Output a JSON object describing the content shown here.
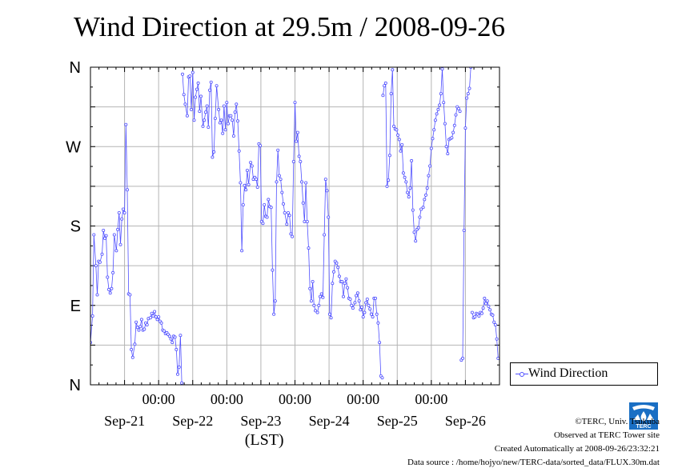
{
  "title": "Wind Direction at 29.5m / 2008-09-26",
  "legend": {
    "label": "Wind Direction"
  },
  "footer": {
    "copyright": "©TERC, Univ. Tsukuba",
    "observed": "Observed at TERC Tower site",
    "created": "Created Automatically at 2008-09-26/23:32:21",
    "source": "Data source : /home/hojyo/new/TERC-data/sorted_data/FLUX.30m.dat"
  },
  "logo": {
    "text": "TERC",
    "icon": "terc-logo-icon"
  },
  "colors": {
    "series": "#5050ff",
    "grid": "#b4b4b4",
    "axis": "#000000",
    "logo": "#1a6fc4"
  },
  "chart_data": {
    "type": "scatter",
    "title": "Wind Direction at 29.5m / 2008-09-26",
    "xlabel": "(LST)",
    "ylabel": "",
    "y_axis": {
      "ticks": [
        "N",
        "E",
        "S",
        "W",
        "N"
      ],
      "values": [
        0,
        90,
        180,
        270,
        360
      ],
      "range": [
        0,
        360
      ]
    },
    "x_axis": {
      "range_days": [
        20.0,
        26.0
      ],
      "time_ticks": [
        {
          "day": 21,
          "label": "00:00"
        },
        {
          "day": 22,
          "label": "00:00"
        },
        {
          "day": 23,
          "label": "00:00"
        },
        {
          "day": 24,
          "label": "00:00"
        },
        {
          "day": 25,
          "label": "00:00"
        }
      ],
      "date_labels": [
        {
          "day": 20.5,
          "label": "Sep-21"
        },
        {
          "day": 21.5,
          "label": "Sep-22"
        },
        {
          "day": 22.5,
          "label": "Sep-23"
        },
        {
          "day": 23.5,
          "label": "Sep-24"
        },
        {
          "day": 24.5,
          "label": "Sep-25"
        },
        {
          "day": 25.5,
          "label": "Sep-26"
        }
      ]
    },
    "grid": true,
    "legend_position": "right",
    "series": [
      {
        "name": "Wind Direction",
        "x_unit": "days since Sep-20 00:00",
        "points": [
          [
            20.0,
            48
          ],
          [
            20.03,
            78
          ],
          [
            20.05,
            170
          ],
          [
            20.08,
            135
          ],
          [
            20.1,
            102
          ],
          [
            20.12,
            140
          ],
          [
            20.14,
            139
          ],
          [
            20.17,
            148
          ],
          [
            20.19,
            175
          ],
          [
            20.21,
            166
          ],
          [
            20.23,
            169
          ],
          [
            20.25,
            122
          ],
          [
            20.27,
            108
          ],
          [
            20.29,
            104
          ],
          [
            20.31,
            109
          ],
          [
            20.33,
            127
          ],
          [
            20.35,
            170
          ],
          [
            20.38,
            152
          ],
          [
            20.4,
            176
          ],
          [
            20.42,
            195
          ],
          [
            20.44,
            159
          ],
          [
            20.46,
            188
          ],
          [
            20.48,
            199
          ],
          [
            20.5,
            195
          ],
          [
            20.52,
            295
          ],
          [
            20.54,
            221
          ],
          [
            20.56,
            103
          ],
          [
            20.58,
            102
          ],
          [
            20.6,
            40
          ],
          [
            20.62,
            31
          ],
          [
            20.65,
            46
          ],
          [
            20.67,
            71
          ],
          [
            20.69,
            65
          ],
          [
            20.71,
            62
          ],
          [
            20.73,
            66
          ],
          [
            20.75,
            74
          ],
          [
            20.77,
            62
          ],
          [
            20.79,
            63
          ],
          [
            20.81,
            70
          ],
          [
            20.83,
            68
          ],
          [
            20.85,
            75
          ],
          [
            20.88,
            76
          ],
          [
            20.9,
            81
          ],
          [
            20.92,
            78
          ],
          [
            20.94,
            83
          ],
          [
            20.96,
            77
          ],
          [
            20.98,
            74
          ],
          [
            21.0,
            77
          ],
          [
            21.02,
            72
          ],
          [
            21.04,
            70
          ],
          [
            21.06,
            62
          ],
          [
            21.08,
            61
          ],
          [
            21.1,
            58
          ],
          [
            21.12,
            59
          ],
          [
            21.14,
            57
          ],
          [
            21.16,
            55
          ],
          [
            21.18,
            52
          ],
          [
            21.2,
            48
          ],
          [
            21.22,
            55
          ],
          [
            21.24,
            54
          ],
          [
            21.26,
            40
          ],
          [
            21.28,
            12
          ],
          [
            21.3,
            20
          ],
          [
            21.32,
            56
          ],
          [
            21.34,
            2
          ],
          [
            21.35,
            352
          ],
          [
            21.37,
            329
          ],
          [
            21.39,
            318
          ],
          [
            21.42,
            305
          ],
          [
            21.44,
            349
          ],
          [
            21.46,
            350
          ],
          [
            21.48,
            312
          ],
          [
            21.5,
            354
          ],
          [
            21.52,
            300
          ],
          [
            21.54,
            326
          ],
          [
            21.56,
            335
          ],
          [
            21.58,
            342
          ],
          [
            21.6,
            310
          ],
          [
            21.62,
            327
          ],
          [
            21.65,
            293
          ],
          [
            21.67,
            300
          ],
          [
            21.69,
            309
          ],
          [
            21.71,
            316
          ],
          [
            21.73,
            292
          ],
          [
            21.75,
            334
          ],
          [
            21.77,
            343
          ],
          [
            21.79,
            258
          ],
          [
            21.81,
            264
          ],
          [
            21.83,
            302
          ],
          [
            21.85,
            339
          ],
          [
            21.88,
            312
          ],
          [
            21.9,
            297
          ],
          [
            21.92,
            300
          ],
          [
            21.94,
            285
          ],
          [
            21.96,
            316
          ],
          [
            21.98,
            289
          ],
          [
            22.0,
            320
          ],
          [
            22.02,
            296
          ],
          [
            22.04,
            305
          ],
          [
            22.06,
            305
          ],
          [
            22.08,
            300
          ],
          [
            22.1,
            282
          ],
          [
            22.12,
            309
          ],
          [
            22.14,
            318
          ],
          [
            22.16,
            299
          ],
          [
            22.18,
            265
          ],
          [
            22.2,
            229
          ],
          [
            22.22,
            152
          ],
          [
            22.24,
            204
          ],
          [
            22.26,
            226
          ],
          [
            22.28,
            221
          ],
          [
            22.3,
            243
          ],
          [
            22.32,
            227
          ],
          [
            22.35,
            252
          ],
          [
            22.37,
            248
          ],
          [
            22.39,
            233
          ],
          [
            22.41,
            235
          ],
          [
            22.43,
            233
          ],
          [
            22.45,
            224
          ],
          [
            22.47,
            273
          ],
          [
            22.49,
            271
          ],
          [
            22.51,
            185
          ],
          [
            22.53,
            183
          ],
          [
            22.55,
            204
          ],
          [
            22.57,
            191
          ],
          [
            22.59,
            190
          ],
          [
            22.61,
            210
          ],
          [
            22.63,
            202
          ],
          [
            22.65,
            201
          ],
          [
            22.67,
            130
          ],
          [
            22.69,
            80
          ],
          [
            22.71,
            95
          ],
          [
            22.73,
            230
          ],
          [
            22.75,
            266
          ],
          [
            22.77,
            237
          ],
          [
            22.79,
            233
          ],
          [
            22.81,
            218
          ],
          [
            22.83,
            205
          ],
          [
            22.85,
            195
          ],
          [
            22.88,
            182
          ],
          [
            22.9,
            195
          ],
          [
            22.92,
            192
          ],
          [
            22.94,
            171
          ],
          [
            22.96,
            168
          ],
          [
            22.98,
            253
          ],
          [
            23.0,
            320
          ],
          [
            23.02,
            276
          ],
          [
            23.04,
            286
          ],
          [
            23.06,
            259
          ],
          [
            23.08,
            253
          ],
          [
            23.1,
            230
          ],
          [
            23.12,
            206
          ],
          [
            23.14,
            185
          ],
          [
            23.16,
            229
          ],
          [
            23.18,
            185
          ],
          [
            23.2,
            155
          ],
          [
            23.22,
            109
          ],
          [
            23.24,
            95
          ],
          [
            23.26,
            117
          ],
          [
            23.28,
            90
          ],
          [
            23.3,
            84
          ],
          [
            23.33,
            82
          ],
          [
            23.35,
            90
          ],
          [
            23.37,
            100
          ],
          [
            23.39,
            103
          ],
          [
            23.41,
            99
          ],
          [
            23.43,
            170
          ],
          [
            23.45,
            233
          ],
          [
            23.47,
            220
          ],
          [
            23.49,
            190
          ],
          [
            23.51,
            80
          ],
          [
            23.53,
            76
          ],
          [
            23.55,
            115
          ],
          [
            23.57,
            128
          ],
          [
            23.59,
            140
          ],
          [
            23.61,
            138
          ],
          [
            23.63,
            133
          ],
          [
            23.65,
            123
          ],
          [
            23.67,
            117
          ],
          [
            23.69,
            117
          ],
          [
            23.71,
            100
          ],
          [
            23.73,
            115
          ],
          [
            23.75,
            120
          ],
          [
            23.77,
            110
          ],
          [
            23.79,
            98
          ],
          [
            23.81,
            97
          ],
          [
            23.83,
            90
          ],
          [
            23.85,
            87
          ],
          [
            23.88,
            93
          ],
          [
            23.9,
            101
          ],
          [
            23.92,
            104
          ],
          [
            23.94,
            95
          ],
          [
            23.96,
            85
          ],
          [
            23.98,
            88
          ],
          [
            24.0,
            77
          ],
          [
            24.02,
            82
          ],
          [
            24.04,
            93
          ],
          [
            24.06,
            97
          ],
          [
            24.08,
            90
          ],
          [
            24.1,
            86
          ],
          [
            24.12,
            80
          ],
          [
            24.14,
            77
          ],
          [
            24.16,
            98
          ],
          [
            24.18,
            98
          ],
          [
            24.2,
            80
          ],
          [
            24.22,
            70
          ],
          [
            24.24,
            48
          ],
          [
            24.26,
            10
          ],
          [
            24.28,
            8
          ],
          [
            24.29,
            328
          ],
          [
            24.31,
            339
          ],
          [
            24.33,
            342
          ],
          [
            24.35,
            225
          ],
          [
            24.37,
            232
          ],
          [
            24.39,
            260
          ],
          [
            24.41,
            330
          ],
          [
            24.43,
            357
          ],
          [
            24.45,
            293
          ],
          [
            24.47,
            290
          ],
          [
            24.49,
            289
          ],
          [
            24.51,
            283
          ],
          [
            24.53,
            278
          ],
          [
            24.55,
            265
          ],
          [
            24.57,
            272
          ],
          [
            24.59,
            240
          ],
          [
            24.61,
            235
          ],
          [
            24.63,
            230
          ],
          [
            24.65,
            218
          ],
          [
            24.67,
            213
          ],
          [
            24.69,
            223
          ],
          [
            24.71,
            254
          ],
          [
            24.73,
            198
          ],
          [
            24.75,
            173
          ],
          [
            24.77,
            163
          ],
          [
            24.79,
            176
          ],
          [
            24.81,
            178
          ],
          [
            24.83,
            190
          ],
          [
            24.85,
            199
          ],
          [
            24.88,
            201
          ],
          [
            24.9,
            210
          ],
          [
            24.92,
            215
          ],
          [
            24.94,
            223
          ],
          [
            24.96,
            237
          ],
          [
            24.98,
            248
          ],
          [
            25.0,
            268
          ],
          [
            25.02,
            279
          ],
          [
            25.04,
            289
          ],
          [
            25.06,
            300
          ],
          [
            25.08,
            307
          ],
          [
            25.1,
            312
          ],
          [
            25.12,
            317
          ],
          [
            25.14,
            330
          ],
          [
            25.16,
            358
          ],
          [
            25.18,
            320
          ],
          [
            25.2,
            296
          ],
          [
            25.22,
            270
          ],
          [
            25.24,
            262
          ],
          [
            25.26,
            278
          ],
          [
            25.28,
            279
          ],
          [
            25.3,
            280
          ],
          [
            25.32,
            286
          ],
          [
            25.34,
            294
          ],
          [
            25.36,
            306
          ],
          [
            25.38,
            315
          ],
          [
            25.4,
            313
          ],
          [
            25.42,
            310
          ],
          [
            25.44,
            28
          ],
          [
            25.46,
            30
          ],
          [
            25.48,
            175
          ],
          [
            25.5,
            291
          ],
          [
            25.52,
            325
          ],
          [
            25.54,
            330
          ],
          [
            25.56,
            336
          ],
          [
            25.58,
            360
          ],
          [
            25.6,
            82
          ],
          [
            25.62,
            76
          ],
          [
            25.64,
            77
          ],
          [
            25.66,
            81
          ],
          [
            25.68,
            80
          ],
          [
            25.7,
            78
          ],
          [
            25.72,
            82
          ],
          [
            25.74,
            81
          ],
          [
            25.76,
            87
          ],
          [
            25.78,
            98
          ],
          [
            25.8,
            92
          ],
          [
            25.82,
            95
          ],
          [
            25.84,
            89
          ],
          [
            25.86,
            85
          ],
          [
            25.88,
            80
          ],
          [
            25.9,
            79
          ],
          [
            25.92,
            71
          ],
          [
            25.94,
            68
          ],
          [
            25.96,
            52
          ],
          [
            25.98,
            30
          ]
        ]
      }
    ]
  }
}
